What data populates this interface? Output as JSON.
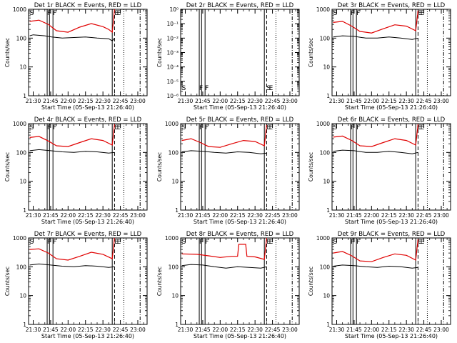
{
  "figure": {
    "background": "#ffffff",
    "axis_color": "#000000",
    "events_color": "#000000",
    "lld_color": "#e00000"
  },
  "chart_data": [
    {
      "type": "line",
      "scale": "log",
      "title": "Det 1r  BLACK = Events, RED = LLD",
      "xlabel": "Start Time (05-Sep-13 21:26:40)",
      "ylabel": "Counts/sec",
      "ylim": [
        1,
        1000
      ],
      "ytick_labels": [
        "1",
        "10",
        "100",
        "1000"
      ],
      "xtick_labels": [
        "21:30",
        "21:45",
        "22:00",
        "22:15",
        "22:30",
        "22:45",
        "23:00"
      ],
      "markers": [
        "S",
        "F",
        "F",
        "E",
        "E"
      ],
      "series": [
        {
          "name": "LLD",
          "color": "#e00000",
          "x": [
            "21:27",
            "21:35",
            "21:43",
            "21:50",
            "22:00",
            "22:10",
            "22:20",
            "22:30",
            "22:35",
            "22:38",
            "22:40"
          ],
          "values": [
            380,
            420,
            300,
            180,
            160,
            240,
            320,
            250,
            200,
            160,
            1000
          ]
        },
        {
          "name": "Events",
          "color": "#000000",
          "x": [
            "21:27",
            "21:30",
            "21:40",
            "21:46",
            "21:55",
            "22:05",
            "22:15",
            "22:25",
            "22:35",
            "22:38",
            "22:40"
          ],
          "values": [
            120,
            130,
            120,
            110,
            100,
            105,
            110,
            100,
            95,
            80,
            100
          ]
        }
      ]
    },
    {
      "type": "line",
      "scale": "log",
      "title": "Det 2r  BLACK = Events, RED = LLD",
      "xlabel": "Start Time (05-Sep-13 21:26:40)",
      "ylabel": "Counts/sec",
      "ylim": [
        1e-06,
        1
      ],
      "ytick_labels": [
        "10⁻⁶",
        "10⁻⁵",
        "10⁻⁴",
        "10⁻³",
        "10⁻²",
        "10⁻¹",
        "10⁰"
      ],
      "xtick_labels": [
        "21:30",
        "21:45",
        "22:00",
        "22:15",
        "22:30",
        "22:45",
        "23:00"
      ],
      "markers": [
        "S",
        "F",
        "F",
        "S",
        "E"
      ],
      "series": []
    },
    {
      "type": "line",
      "scale": "log",
      "title": "Det 3r  BLACK = Events, RED = LLD",
      "xlabel": "Start Time (05-Sep-13 21:26:40)",
      "ylabel": "Counts/sec",
      "ylim": [
        1,
        1000
      ],
      "ytick_labels": [
        "1",
        "10",
        "100",
        "1000"
      ],
      "xtick_labels": [
        "21:30",
        "21:45",
        "22:00",
        "22:15",
        "22:30",
        "22:45",
        "23:00"
      ],
      "markers": [
        "S",
        "F",
        "F",
        "E",
        "E"
      ],
      "series": [
        {
          "name": "LLD",
          "color": "#e00000",
          "x": [
            "21:27",
            "21:35",
            "21:43",
            "21:50",
            "22:00",
            "22:10",
            "22:20",
            "22:30",
            "22:38",
            "22:40"
          ],
          "values": [
            350,
            380,
            260,
            170,
            150,
            210,
            290,
            260,
            180,
            900
          ]
        },
        {
          "name": "Events",
          "color": "#000000",
          "x": [
            "21:27",
            "21:35",
            "21:45",
            "21:55",
            "22:05",
            "22:15",
            "22:25",
            "22:35",
            "22:40"
          ],
          "values": [
            110,
            120,
            115,
            100,
            100,
            110,
            100,
            90,
            100
          ]
        }
      ]
    },
    {
      "type": "line",
      "scale": "log",
      "title": "Det 4r  BLACK = Events, RED = LLD",
      "xlabel": "Start Time (05-Sep-13 21:26:40)",
      "ylabel": "Counts/sec",
      "ylim": [
        1,
        1000
      ],
      "ytick_labels": [
        "1",
        "10",
        "100",
        "1000"
      ],
      "xtick_labels": [
        "21:30",
        "21:45",
        "22:00",
        "22:15",
        "22:30",
        "22:45",
        "23:00"
      ],
      "markers": [
        "S",
        "F",
        "F",
        "E",
        "E"
      ],
      "series": [
        {
          "name": "LLD",
          "color": "#e00000",
          "x": [
            "21:27",
            "21:35",
            "21:43",
            "21:50",
            "22:00",
            "22:10",
            "22:20",
            "22:30",
            "22:38",
            "22:40"
          ],
          "values": [
            330,
            360,
            250,
            170,
            160,
            220,
            300,
            260,
            180,
            950
          ]
        },
        {
          "name": "Events",
          "color": "#000000",
          "x": [
            "21:27",
            "21:35",
            "21:45",
            "21:55",
            "22:05",
            "22:15",
            "22:25",
            "22:35",
            "22:40"
          ],
          "values": [
            115,
            125,
            115,
            105,
            100,
            110,
            105,
            95,
            100
          ]
        }
      ]
    },
    {
      "type": "line",
      "scale": "log",
      "title": "Det 5r  BLACK = Events, RED = LLD",
      "xlabel": "Start Time (05-Sep-13 21:26:40)",
      "ylabel": "Counts/sec",
      "ylim": [
        1,
        1000
      ],
      "ytick_labels": [
        "1",
        "10",
        "100",
        "1000"
      ],
      "xtick_labels": [
        "21:30",
        "21:45",
        "22:00",
        "22:15",
        "22:30",
        "22:45",
        "23:00"
      ],
      "markers": [
        "S",
        "F",
        "F",
        "E",
        "E"
      ],
      "series": [
        {
          "name": "LLD",
          "color": "#e00000",
          "x": [
            "21:27",
            "21:35",
            "21:43",
            "21:50",
            "22:00",
            "22:10",
            "22:20",
            "22:30",
            "22:38",
            "22:40"
          ],
          "values": [
            260,
            300,
            220,
            160,
            150,
            200,
            260,
            240,
            170,
            900
          ]
        },
        {
          "name": "Events",
          "color": "#000000",
          "x": [
            "21:27",
            "21:35",
            "21:45",
            "21:55",
            "22:05",
            "22:15",
            "22:25",
            "22:35",
            "22:40"
          ],
          "values": [
            105,
            115,
            110,
            100,
            95,
            105,
            100,
            90,
            95
          ]
        }
      ]
    },
    {
      "type": "line",
      "scale": "log",
      "title": "Det 6r  BLACK = Events, RED = LLD",
      "xlabel": "Start Time (05-Sep-13 21:26:40)",
      "ylabel": "Counts/sec",
      "ylim": [
        1,
        1000
      ],
      "ytick_labels": [
        "1",
        "10",
        "100",
        "1000"
      ],
      "xtick_labels": [
        "21:30",
        "21:45",
        "22:00",
        "22:15",
        "22:30",
        "22:45",
        "23:00"
      ],
      "markers": [
        "S",
        "F",
        "F",
        "E",
        "E"
      ],
      "series": [
        {
          "name": "LLD",
          "color": "#e00000",
          "x": [
            "21:27",
            "21:35",
            "21:43",
            "21:50",
            "22:00",
            "22:10",
            "22:20",
            "22:30",
            "22:38",
            "22:40"
          ],
          "values": [
            340,
            370,
            260,
            170,
            160,
            220,
            300,
            260,
            180,
            950
          ]
        },
        {
          "name": "Events",
          "color": "#000000",
          "x": [
            "21:27",
            "21:35",
            "21:45",
            "21:55",
            "22:05",
            "22:15",
            "22:25",
            "22:35",
            "22:40"
          ],
          "values": [
            110,
            120,
            115,
            100,
            100,
            110,
            100,
            90,
            100
          ]
        }
      ]
    },
    {
      "type": "line",
      "scale": "log",
      "title": "Det 7r  BLACK = Events, RED = LLD",
      "xlabel": "Start Time (05-Sep-13 21:26:40)",
      "ylabel": "Counts/sec",
      "ylim": [
        1,
        1000
      ],
      "ytick_labels": [
        "1",
        "10",
        "100",
        "1000"
      ],
      "xtick_labels": [
        "21:30",
        "21:45",
        "22:00",
        "22:15",
        "22:30",
        "22:45",
        "23:00"
      ],
      "markers": [
        "S",
        "F",
        "F",
        "E",
        "E"
      ],
      "series": [
        {
          "name": "LLD",
          "color": "#e00000",
          "x": [
            "21:27",
            "21:35",
            "21:43",
            "21:50",
            "22:00",
            "22:10",
            "22:20",
            "22:30",
            "22:38",
            "22:40"
          ],
          "values": [
            400,
            420,
            300,
            190,
            170,
            230,
            320,
            270,
            190,
            1000
          ]
        },
        {
          "name": "Events",
          "color": "#000000",
          "x": [
            "21:27",
            "21:35",
            "21:45",
            "21:55",
            "22:05",
            "22:15",
            "22:25",
            "22:35",
            "22:40"
          ],
          "values": [
            115,
            125,
            115,
            105,
            100,
            110,
            105,
            95,
            100
          ]
        }
      ]
    },
    {
      "type": "line",
      "scale": "log",
      "title": "Det 8r  BLACK = Events, RED = LLD",
      "xlabel": "Start Time (05-Sep-13 21:26:40)",
      "ylabel": "Counts/sec",
      "ylim": [
        1,
        1000
      ],
      "ytick_labels": [
        "1",
        "10",
        "100",
        "1000"
      ],
      "xtick_labels": [
        "21:30",
        "21:45",
        "22:00",
        "22:15",
        "22:30",
        "22:45",
        "23:00"
      ],
      "markers": [
        "S",
        "F",
        "F",
        "E",
        "E"
      ],
      "series": [
        {
          "name": "LLD",
          "color": "#e00000",
          "x": [
            "21:27",
            "21:40",
            "21:50",
            "22:00",
            "22:10",
            "22:15",
            "22:16",
            "22:22",
            "22:23",
            "22:30",
            "22:38",
            "22:40"
          ],
          "values": [
            280,
            270,
            240,
            210,
            230,
            230,
            600,
            600,
            230,
            220,
            180,
            1000
          ]
        },
        {
          "name": "Events",
          "color": "#000000",
          "x": [
            "21:27",
            "21:35",
            "21:45",
            "21:55",
            "22:05",
            "22:15",
            "22:25",
            "22:35",
            "22:40"
          ],
          "values": [
            110,
            120,
            115,
            100,
            90,
            100,
            95,
            90,
            100
          ]
        }
      ]
    },
    {
      "type": "line",
      "scale": "log",
      "title": "Det 9r  BLACK = Events, RED = LLD",
      "xlabel": "Start Time (05-Sep-13 21:26:40)",
      "ylabel": "Counts/sec",
      "ylim": [
        1,
        1000
      ],
      "ytick_labels": [
        "1",
        "10",
        "100",
        "1000"
      ],
      "xtick_labels": [
        "21:30",
        "21:45",
        "22:00",
        "22:15",
        "22:30",
        "22:45",
        "23:00"
      ],
      "markers": [
        "S",
        "F",
        "F",
        "E",
        "E"
      ],
      "series": [
        {
          "name": "LLD",
          "color": "#e00000",
          "x": [
            "21:27",
            "21:35",
            "21:43",
            "21:50",
            "22:00",
            "22:10",
            "22:20",
            "22:30",
            "22:38",
            "22:40"
          ],
          "values": [
            300,
            340,
            240,
            160,
            150,
            210,
            280,
            250,
            170,
            900
          ]
        },
        {
          "name": "Events",
          "color": "#000000",
          "x": [
            "21:27",
            "21:35",
            "21:45",
            "21:55",
            "22:05",
            "22:15",
            "22:25",
            "22:35",
            "22:40"
          ],
          "values": [
            105,
            115,
            110,
            100,
            95,
            105,
            100,
            90,
            95
          ]
        }
      ]
    }
  ]
}
